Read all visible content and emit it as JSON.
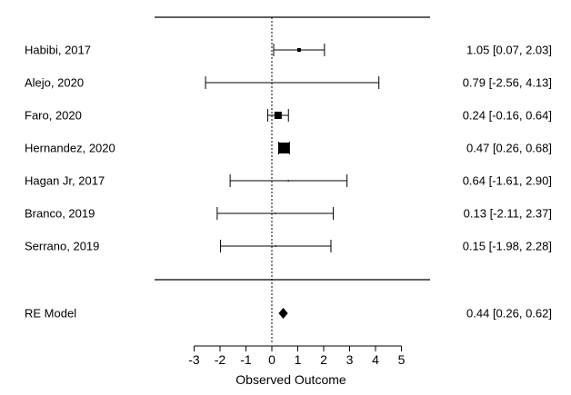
{
  "chart_data": {
    "type": "forest",
    "xlabel": "Observed Outcome",
    "xticks": [
      -3,
      -2,
      -1,
      0,
      1,
      2,
      3,
      4,
      5
    ],
    "xlim": [
      -3,
      5
    ],
    "reference_line": 0,
    "studies": [
      {
        "label": "Habibi, 2017",
        "estimate": 1.05,
        "lower": 0.07,
        "upper": 2.03,
        "ci_text": "1.05 [0.07, 2.03]",
        "weight": 4
      },
      {
        "label": "Alejo, 2020",
        "estimate": 0.79,
        "lower": -2.56,
        "upper": 4.13,
        "ci_text": "0.79 [-2.56, 4.13]",
        "weight": 1
      },
      {
        "label": "Faro, 2020",
        "estimate": 0.24,
        "lower": -0.16,
        "upper": 0.64,
        "ci_text": "0.24 [-0.16, 0.64]",
        "weight": 8
      },
      {
        "label": "Hernandez, 2020",
        "estimate": 0.47,
        "lower": 0.26,
        "upper": 0.68,
        "ci_text": "0.47 [0.26, 0.68]",
        "weight": 12
      },
      {
        "label": "Hagan Jr, 2017",
        "estimate": 0.64,
        "lower": -1.61,
        "upper": 2.9,
        "ci_text": "0.64 [-1.61, 2.90]",
        "weight": 1.5
      },
      {
        "label": "Branco, 2019",
        "estimate": 0.13,
        "lower": -2.11,
        "upper": 2.37,
        "ci_text": "0.13 [-2.11, 2.37]",
        "weight": 1.5
      },
      {
        "label": "Serrano, 2019",
        "estimate": 0.15,
        "lower": -1.98,
        "upper": 2.28,
        "ci_text": "0.15 [-1.98, 2.28]",
        "weight": 1.5
      }
    ],
    "summary": {
      "label": "RE Model",
      "estimate": 0.44,
      "lower": 0.26,
      "upper": 0.62,
      "ci_text": "0.44 [0.26, 0.62]"
    }
  }
}
